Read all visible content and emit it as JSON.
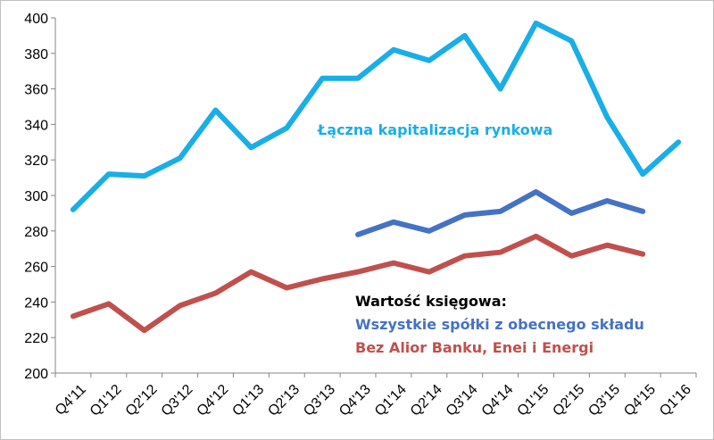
{
  "chart_data": {
    "type": "line",
    "categories": [
      "Q4'11",
      "Q1'12",
      "Q2'12",
      "Q3'12",
      "Q4'12",
      "Q1'13",
      "Q2'13",
      "Q3'13",
      "Q4'13",
      "Q1'14",
      "Q2'14",
      "Q3'14",
      "Q4'14",
      "Q1'15",
      "Q2'15",
      "Q3'15",
      "Q4'15",
      "Q1'16"
    ],
    "ylim": [
      200,
      400
    ],
    "yticks": [
      200,
      220,
      240,
      260,
      280,
      300,
      320,
      340,
      360,
      380,
      400
    ],
    "grid": false,
    "series": [
      {
        "name": "Łączna kapitalizacja rynkowa",
        "color": "#1aaee6",
        "values": [
          292,
          312,
          311,
          321,
          348,
          327,
          338,
          366,
          366,
          382,
          376,
          390,
          360,
          397,
          387,
          344,
          312,
          330
        ]
      },
      {
        "name": "Wszystkie spółki z obecnego składu",
        "color": "#4472c4",
        "values": [
          null,
          null,
          null,
          null,
          null,
          null,
          null,
          null,
          278,
          285,
          280,
          289,
          291,
          302,
          290,
          297,
          291,
          null
        ]
      },
      {
        "name": "Bez Alior Banku, Enei i Energi",
        "color": "#c0504d",
        "values": [
          232,
          239,
          224,
          238,
          245,
          257,
          248,
          253,
          257,
          262,
          257,
          266,
          268,
          277,
          266,
          272,
          267,
          null
        ]
      }
    ],
    "annotations": {
      "market_cap": "Łączna kapitalizacja rynkowa",
      "book_value_header": "Wartość księgowa:"
    }
  }
}
